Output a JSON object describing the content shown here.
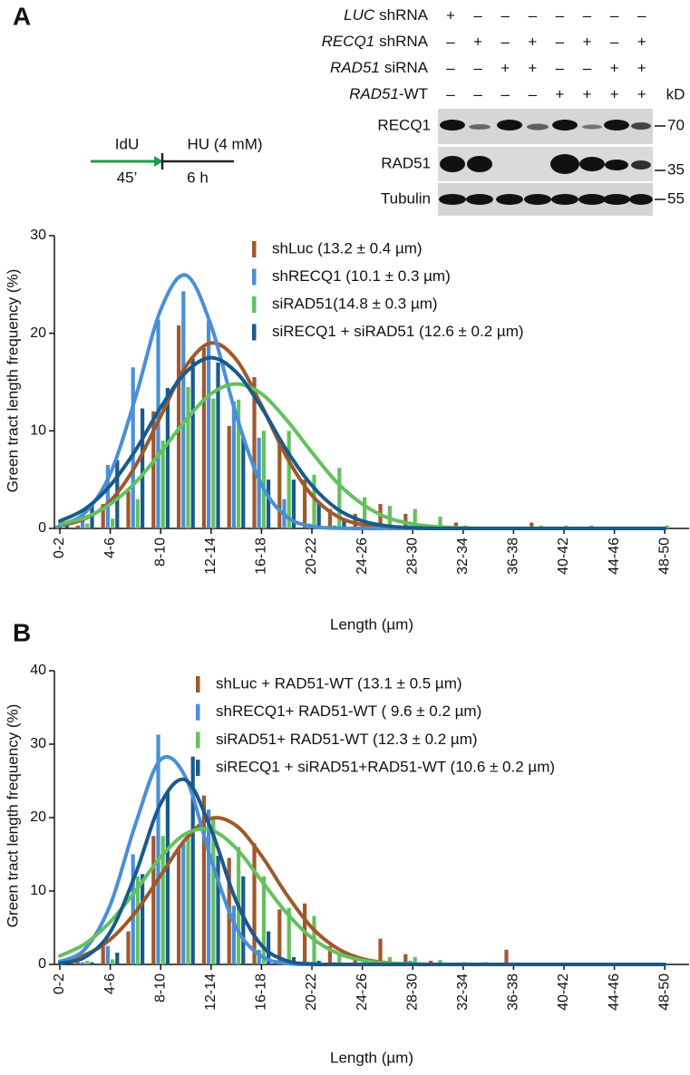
{
  "panel_labels": [
    "A",
    "B"
  ],
  "schematic": {
    "idu": "IdU",
    "idu_time": "45’",
    "hu": "HU (4 mM)",
    "hu_time": "6 h"
  },
  "blot": {
    "conditions": [
      {
        "gene": "LUC",
        "suffix": "shRNA",
        "signs": [
          "+",
          "–",
          "–",
          "–",
          "–",
          "–",
          "–",
          "–"
        ]
      },
      {
        "gene": "RECQ1",
        "suffix": "shRNA",
        "signs": [
          "–",
          "+",
          "–",
          "+",
          "–",
          "+",
          "–",
          "+"
        ]
      },
      {
        "gene": "RAD51",
        "suffix": "siRNA",
        "signs": [
          "–",
          "–",
          "+",
          "+",
          "–",
          "–",
          "+",
          "+"
        ]
      },
      {
        "gene": "RAD51",
        "suffix": "-WT",
        "signs": [
          "–",
          "–",
          "–",
          "–",
          "+",
          "+",
          "+",
          "+"
        ]
      }
    ],
    "unit": "kD",
    "rows": [
      {
        "label": "RECQ1",
        "marker": 70
      },
      {
        "label": "RAD51",
        "marker": 35
      },
      {
        "label": "Tubulin",
        "marker": 55
      }
    ]
  },
  "chart_data": [
    {
      "type": "bar",
      "xlabel": "Length (µm)",
      "ylabel": "Green tract length frequency (%)",
      "categories": [
        "0-2",
        null,
        "4-6",
        null,
        "8-10",
        null,
        "12-14",
        null,
        "16-18",
        null,
        "20-22",
        null,
        "24-26",
        null,
        "28-30",
        null,
        "32-34",
        null,
        "36-38",
        null,
        "40-42",
        null,
        "44-46",
        null,
        "48-50"
      ],
      "ylim": [
        0,
        30
      ],
      "yticks": [
        0,
        10,
        20,
        30
      ],
      "series": [
        {
          "name": "shLuc (13.2 ± 0.4 µm)",
          "color": "#a0582b",
          "values": [
            0,
            0.3,
            2.5,
            3.8,
            12,
            20.8,
            18.5,
            10.5,
            15.5,
            9,
            5,
            2,
            1.5,
            2.5,
            1.5,
            0.4,
            0.6,
            0,
            0,
            0.6,
            0,
            0,
            0,
            0,
            0
          ],
          "fit": [
            0.28,
            1.0,
            2.8,
            6.4,
            11.5,
            16.6,
            19,
            17.3,
            12.6,
            7.3,
            3.4,
            1.25,
            0.37,
            0.09,
            0.02,
            0,
            0,
            0,
            0,
            0,
            0,
            0,
            0,
            0,
            0
          ]
        },
        {
          "name": "shRECQ1 (10.1 ± 0.3 µm)",
          "color": "#4a8fd6",
          "values": [
            0.3,
            1.5,
            6.5,
            16.5,
            21.4,
            24.3,
            21.3,
            13,
            9.3,
            3,
            0.5,
            0.3,
            0,
            0,
            0,
            0,
            0,
            0,
            0,
            0,
            0,
            0,
            0,
            0,
            0
          ],
          "fit": [
            0.32,
            1.6,
            5.6,
            13.4,
            22.4,
            25.95,
            20.8,
            11.6,
            4.5,
            1.2,
            0.22,
            0.03,
            0,
            0,
            0,
            0,
            0,
            0,
            0,
            0,
            0,
            0,
            0,
            0,
            0
          ]
        },
        {
          "name": "siRAD51(14.8 ± 0.3 µm)",
          "color": "#63c15f",
          "values": [
            0,
            0.5,
            1,
            3,
            9,
            14.5,
            13.3,
            13.2,
            10,
            10,
            5.5,
            6.2,
            3.2,
            2.3,
            2,
            1.2,
            0.3,
            0,
            0,
            0.3,
            0.3,
            0.3,
            0,
            0,
            0.3
          ],
          "fit": [
            0.45,
            1.1,
            2.5,
            4.7,
            7.8,
            11.1,
            13.8,
            14.8,
            13.8,
            11.1,
            7.8,
            4.7,
            2.5,
            1.1,
            0.45,
            0.16,
            0.05,
            0,
            0,
            0,
            0,
            0,
            0,
            0,
            0
          ]
        },
        {
          "name": "siRECQ1 + siRAD51 (12.6 ± 0.2 µm)",
          "color": "#195a8c",
          "values": [
            0.3,
            2.5,
            7,
            12.3,
            14.4,
            17.4,
            17,
            9.3,
            5,
            5,
            2.7,
            1,
            0.5,
            0,
            0,
            0,
            0,
            0,
            0,
            0,
            0,
            0,
            0,
            0,
            0
          ],
          "fit": [
            0.76,
            2.0,
            4.4,
            8.0,
            12.4,
            16.0,
            17.5,
            16.0,
            12.4,
            8.0,
            4.4,
            2.0,
            0.76,
            0.25,
            0.07,
            0,
            0,
            0,
            0,
            0,
            0,
            0,
            0,
            0,
            0
          ]
        }
      ]
    },
    {
      "type": "bar",
      "xlabel": "Length (µm)",
      "ylabel": "Green tract length frequency (%)",
      "categories": [
        "0-2",
        null,
        "4-6",
        null,
        "8-10",
        null,
        "12-14",
        null,
        "16-18",
        null,
        "20-22",
        null,
        "24-26",
        null,
        "28-30",
        null,
        "32-34",
        null,
        "36-38",
        null,
        "40-42",
        null,
        "44-46",
        null,
        "48-50"
      ],
      "ylim": [
        0,
        40
      ],
      "yticks": [
        0,
        10,
        20,
        30,
        40
      ],
      "series": [
        {
          "name": "shLuc + RAD51-WT (13.1 ± 0.5 µm)",
          "color": "#a0582b",
          "values": [
            0,
            0.3,
            2.5,
            4.5,
            17.5,
            16,
            23,
            14.5,
            16.5,
            7.5,
            8.3,
            2.5,
            1,
            3.5,
            1.4,
            0.5,
            0,
            0,
            2,
            0,
            0,
            0,
            0,
            0,
            0
          ],
          "fit": [
            0.42,
            1.3,
            3.4,
            7.1,
            12.1,
            17.1,
            19.9,
            18.9,
            14.8,
            9.5,
            5.0,
            2.2,
            0.77,
            0.22,
            0.05,
            0,
            0,
            0,
            0,
            0,
            0,
            0,
            0,
            0,
            0
          ]
        },
        {
          "name": "shRECQ1+ RAD51-WT ( 9.6 ± 0.2 µm)",
          "color": "#4a8fd6",
          "values": [
            0,
            0.3,
            2.5,
            15,
            31.3,
            16.5,
            21.1,
            8,
            2,
            0.5,
            0,
            0.3,
            0,
            0,
            0.5,
            0,
            0,
            0.3,
            0,
            0,
            0,
            0,
            0,
            0,
            0
          ],
          "fit": [
            0.35,
            2.1,
            8.1,
            19.1,
            27.9,
            25.4,
            14.3,
            5.0,
            1.1,
            0.15,
            0,
            0,
            0,
            0,
            0,
            0,
            0,
            0,
            0,
            0,
            0,
            0,
            0,
            0,
            0
          ]
        },
        {
          "name": "siRAD51+ RAD51-WT (12.3 ± 0.2 µm)",
          "color": "#63c15f",
          "values": [
            0,
            0.5,
            0.7,
            12,
            17.5,
            17.5,
            19.8,
            16,
            12,
            7.7,
            6.6,
            1.5,
            0.8,
            1,
            1,
            0.6,
            0.3,
            0,
            0,
            0,
            0,
            0,
            0,
            0,
            0
          ],
          "fit": [
            1.15,
            2.8,
            5.8,
            10.0,
            14.6,
            17.8,
            18.3,
            15.8,
            11.4,
            7.0,
            3.6,
            1.55,
            0.56,
            0.17,
            0.04,
            0,
            0,
            0,
            0,
            0,
            0,
            0,
            0,
            0,
            0
          ]
        },
        {
          "name": "siRECQ1 + siRAD51+RAD51-WT (10.6 ± 0.2 µm)",
          "color": "#195a8c",
          "values": [
            0,
            0.3,
            1.6,
            12.3,
            23.5,
            28.3,
            14.8,
            12,
            4.5,
            1,
            0.5,
            0,
            0.3,
            0,
            0,
            0,
            0,
            0,
            0,
            0,
            0,
            0,
            0,
            0,
            0
          ],
          "fit": [
            0.15,
            1.0,
            4.4,
            12.3,
            21.9,
            25.1,
            18.4,
            8.6,
            2.6,
            0.5,
            0.06,
            0,
            0,
            0,
            0,
            0,
            0,
            0,
            0,
            0,
            0,
            0,
            0,
            0,
            0
          ]
        }
      ]
    }
  ]
}
